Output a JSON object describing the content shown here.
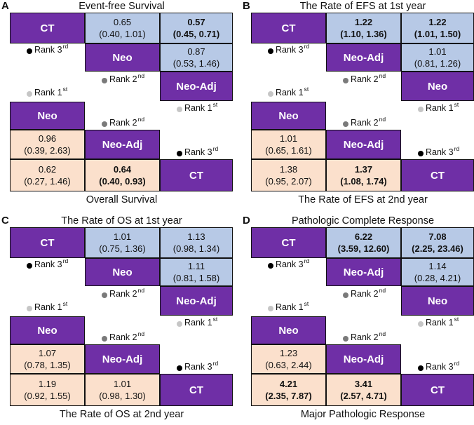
{
  "panels": [
    {
      "letter": "A",
      "top_title": "Event-free Survival",
      "bottom_title": "Overall Survival",
      "upper": {
        "treatments": [
          "CT",
          "Neo",
          "Neo-Adj"
        ],
        "cells": [
          {
            "line1": "0.65",
            "line2": "(0.40, 1.01)",
            "bold": false
          },
          {
            "line1": "0.57",
            "line2": "(0.45, 0.71)",
            "bold": true
          },
          {
            "line1": "0.87",
            "line2": "(0.53, 1.46)",
            "bold": false
          }
        ],
        "ranks": [
          {
            "text": "Rank 3",
            "sup": "rd"
          },
          {
            "text": "Rank 2",
            "sup": "nd"
          },
          {
            "text": "Rank 1",
            "sup": "st"
          }
        ]
      },
      "lower": {
        "treatments": [
          "Neo",
          "Neo-Adj",
          "CT"
        ],
        "cells": [
          {
            "line1": "0.96",
            "line2": "(0.39, 2.63)",
            "bold": false
          },
          {
            "line1": "0.62",
            "line2": "(0.27, 1.46)",
            "bold": false
          },
          {
            "line1": "0.64",
            "line2": "(0.40, 0.93)",
            "bold": true
          }
        ],
        "ranks": [
          {
            "text": "Rank 1",
            "sup": "st"
          },
          {
            "text": "Rank 2",
            "sup": "nd"
          },
          {
            "text": "Rank 3",
            "sup": "rd"
          }
        ]
      }
    },
    {
      "letter": "B",
      "top_title": "The Rate of EFS at 1st year",
      "bottom_title": "The Rate of EFS at 2nd year",
      "upper": {
        "treatments": [
          "CT",
          "Neo-Adj",
          "Neo"
        ],
        "cells": [
          {
            "line1": "1.22",
            "line2": "(1.10, 1.36)",
            "bold": true
          },
          {
            "line1": "1.22",
            "line2": "(1.01, 1.50)",
            "bold": true
          },
          {
            "line1": "1.01",
            "line2": "(0.81, 1.26)",
            "bold": false
          }
        ],
        "ranks": [
          {
            "text": "Rank 3",
            "sup": "rd"
          },
          {
            "text": "Rank 2",
            "sup": "nd"
          },
          {
            "text": "Rank 1",
            "sup": "st"
          }
        ]
      },
      "lower": {
        "treatments": [
          "Neo",
          "Neo-Adj",
          "CT"
        ],
        "cells": [
          {
            "line1": "1.01",
            "line2": "(0.65, 1.61)",
            "bold": false
          },
          {
            "line1": "1.38",
            "line2": "(0.95, 2.07)",
            "bold": false
          },
          {
            "line1": "1.37",
            "line2": "(1.08, 1.74)",
            "bold": true
          }
        ],
        "ranks": [
          {
            "text": "Rank 1",
            "sup": "st"
          },
          {
            "text": "Rank 2",
            "sup": "nd"
          },
          {
            "text": "Rank 3",
            "sup": "rd"
          }
        ]
      }
    },
    {
      "letter": "C",
      "top_title": "The Rate of OS at 1st year",
      "bottom_title": "The Rate of OS at 2nd year",
      "upper": {
        "treatments": [
          "CT",
          "Neo",
          "Neo-Adj"
        ],
        "cells": [
          {
            "line1": "1.01",
            "line2": "(0.75, 1.36)",
            "bold": false
          },
          {
            "line1": "1.13",
            "line2": "(0.98, 1.34)",
            "bold": false
          },
          {
            "line1": "1.11",
            "line2": "(0.81, 1.58)",
            "bold": false
          }
        ],
        "ranks": [
          {
            "text": "Rank 3",
            "sup": "rd"
          },
          {
            "text": "Rank 2",
            "sup": "nd"
          },
          {
            "text": "Rank 1",
            "sup": "st"
          }
        ]
      },
      "lower": {
        "treatments": [
          "Neo",
          "Neo-Adj",
          "CT"
        ],
        "cells": [
          {
            "line1": "1.07",
            "line2": "(0.78, 1.35)",
            "bold": false
          },
          {
            "line1": "1.19",
            "line2": "(0.92, 1.55)",
            "bold": false
          },
          {
            "line1": "1.01",
            "line2": "(0.98, 1.30)",
            "bold": false
          }
        ],
        "ranks": [
          {
            "text": "Rank 1",
            "sup": "st"
          },
          {
            "text": "Rank 2",
            "sup": "nd"
          },
          {
            "text": "Rank 3",
            "sup": "rd"
          }
        ]
      }
    },
    {
      "letter": "D",
      "top_title": "Pathologic Complete Response",
      "bottom_title": "Major Pathologic Response",
      "upper": {
        "treatments": [
          "CT",
          "Neo-Adj",
          "Neo"
        ],
        "cells": [
          {
            "line1": "6.22",
            "line2": "(3.59, 12.60)",
            "bold": true
          },
          {
            "line1": "7.08",
            "line2": "(2.25, 23.46)",
            "bold": true
          },
          {
            "line1": "1.14",
            "line2": "(0.28, 4.21)",
            "bold": false
          }
        ],
        "ranks": [
          {
            "text": "Rank 3",
            "sup": "rd"
          },
          {
            "text": "Rank 2",
            "sup": "nd"
          },
          {
            "text": "Rank 1",
            "sup": "st"
          }
        ]
      },
      "lower": {
        "treatments": [
          "Neo",
          "Neo-Adj",
          "CT"
        ],
        "cells": [
          {
            "line1": "1.23",
            "line2": "(0.63, 2.44)",
            "bold": false
          },
          {
            "line1": "4.21",
            "line2": "(2.35, 7.87)",
            "bold": true
          },
          {
            "line1": "3.41",
            "line2": "(2.57, 4.71)",
            "bold": true
          }
        ],
        "ranks": [
          {
            "text": "Rank 1",
            "sup": "st"
          },
          {
            "text": "Rank 2",
            "sup": "nd"
          },
          {
            "text": "Rank 3",
            "sup": "rd"
          }
        ]
      }
    }
  ],
  "colors": {
    "treatment": "#6f2fa6",
    "upper_comparison": "#b7c9e6",
    "lower_comparison": "#fbe0cc",
    "rank_1st_dot": "#c6c6c6",
    "rank_2nd_dot": "#7a7a7a",
    "rank_3rd_dot": "#000000"
  }
}
